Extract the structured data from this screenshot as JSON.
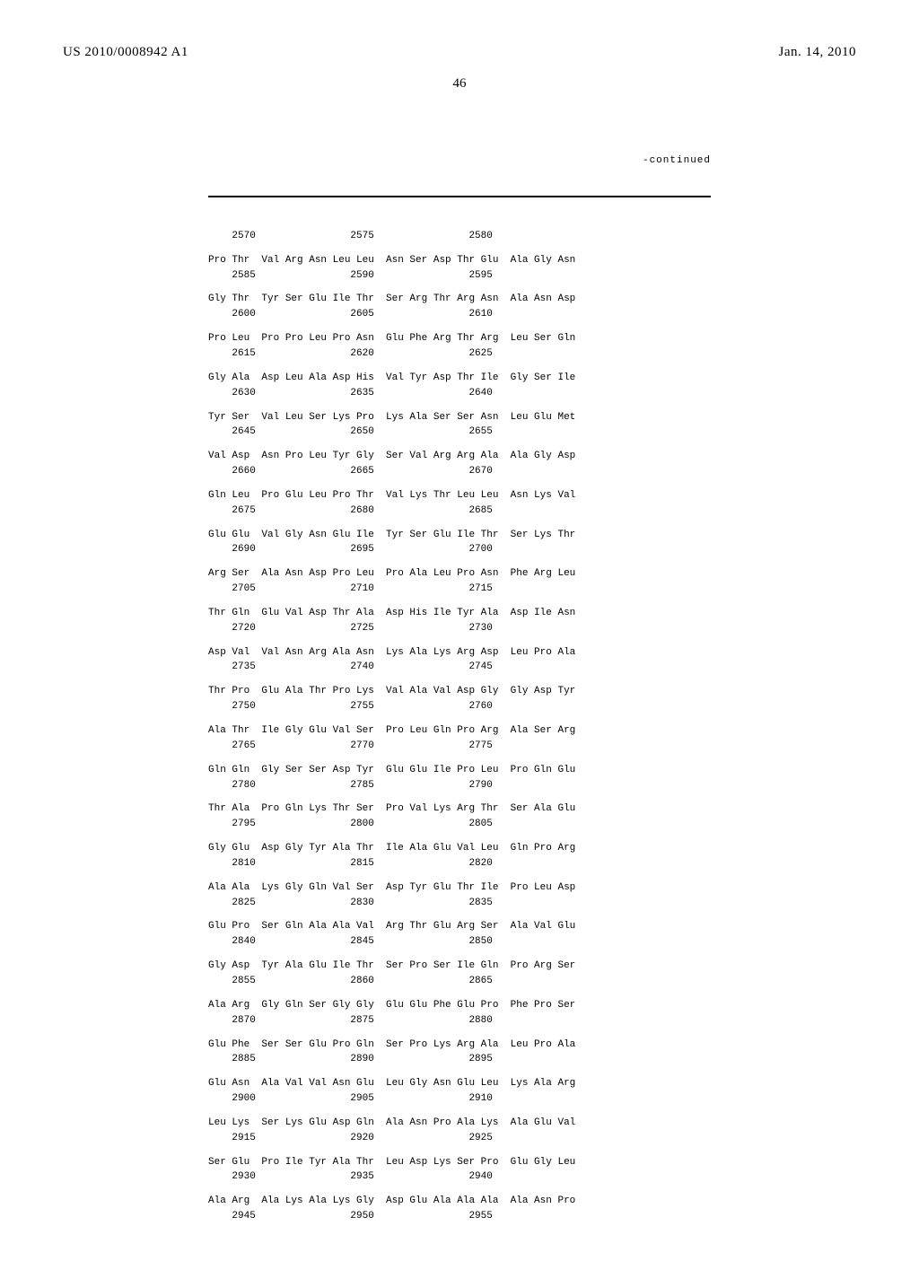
{
  "header": {
    "publication_number": "US 2010/0008942 A1",
    "date": "Jan. 14, 2010"
  },
  "page_number": "46",
  "continued_label": "-continued",
  "sequence_font": {
    "family": "Courier New",
    "size_pt": 11,
    "color": "#000000"
  },
  "sequence_rows": [
    {
      "type": "topnum",
      "text": "    2570                2575                2580"
    },
    {
      "type": "aa",
      "text": "Pro Thr  Val Arg Asn Leu Leu  Asn Ser Asp Thr Glu  Ala Gly Asn"
    },
    {
      "type": "num",
      "text": "    2585                2590                2595"
    },
    {
      "type": "aa",
      "text": "Gly Thr  Tyr Ser Glu Ile Thr  Ser Arg Thr Arg Asn  Ala Asn Asp"
    },
    {
      "type": "num",
      "text": "    2600                2605                2610"
    },
    {
      "type": "aa",
      "text": "Pro Leu  Pro Pro Leu Pro Asn  Glu Phe Arg Thr Arg  Leu Ser Gln"
    },
    {
      "type": "num",
      "text": "    2615                2620                2625"
    },
    {
      "type": "aa",
      "text": "Gly Ala  Asp Leu Ala Asp His  Val Tyr Asp Thr Ile  Gly Ser Ile"
    },
    {
      "type": "num",
      "text": "    2630                2635                2640"
    },
    {
      "type": "aa",
      "text": "Tyr Ser  Val Leu Ser Lys Pro  Lys Ala Ser Ser Asn  Leu Glu Met"
    },
    {
      "type": "num",
      "text": "    2645                2650                2655"
    },
    {
      "type": "aa",
      "text": "Val Asp  Asn Pro Leu Tyr Gly  Ser Val Arg Arg Ala  Ala Gly Asp"
    },
    {
      "type": "num",
      "text": "    2660                2665                2670"
    },
    {
      "type": "aa",
      "text": "Gln Leu  Pro Glu Leu Pro Thr  Val Lys Thr Leu Leu  Asn Lys Val"
    },
    {
      "type": "num",
      "text": "    2675                2680                2685"
    },
    {
      "type": "aa",
      "text": "Glu Glu  Val Gly Asn Glu Ile  Tyr Ser Glu Ile Thr  Ser Lys Thr"
    },
    {
      "type": "num",
      "text": "    2690                2695                2700"
    },
    {
      "type": "aa",
      "text": "Arg Ser  Ala Asn Asp Pro Leu  Pro Ala Leu Pro Asn  Phe Arg Leu"
    },
    {
      "type": "num",
      "text": "    2705                2710                2715"
    },
    {
      "type": "aa",
      "text": "Thr Gln  Glu Val Asp Thr Ala  Asp His Ile Tyr Ala  Asp Ile Asn"
    },
    {
      "type": "num",
      "text": "    2720                2725                2730"
    },
    {
      "type": "aa",
      "text": "Asp Val  Val Asn Arg Ala Asn  Lys Ala Lys Arg Asp  Leu Pro Ala"
    },
    {
      "type": "num",
      "text": "    2735                2740                2745"
    },
    {
      "type": "aa",
      "text": "Thr Pro  Glu Ala Thr Pro Lys  Val Ala Val Asp Gly  Gly Asp Tyr"
    },
    {
      "type": "num",
      "text": "    2750                2755                2760"
    },
    {
      "type": "aa",
      "text": "Ala Thr  Ile Gly Glu Val Ser  Pro Leu Gln Pro Arg  Ala Ser Arg"
    },
    {
      "type": "num",
      "text": "    2765                2770                2775"
    },
    {
      "type": "aa",
      "text": "Gln Gln  Gly Ser Ser Asp Tyr  Glu Glu Ile Pro Leu  Pro Gln Glu"
    },
    {
      "type": "num",
      "text": "    2780                2785                2790"
    },
    {
      "type": "aa",
      "text": "Thr Ala  Pro Gln Lys Thr Ser  Pro Val Lys Arg Thr  Ser Ala Glu"
    },
    {
      "type": "num",
      "text": "    2795                2800                2805"
    },
    {
      "type": "aa",
      "text": "Gly Glu  Asp Gly Tyr Ala Thr  Ile Ala Glu Val Leu  Gln Pro Arg"
    },
    {
      "type": "num",
      "text": "    2810                2815                2820"
    },
    {
      "type": "aa",
      "text": "Ala Ala  Lys Gly Gln Val Ser  Asp Tyr Glu Thr Ile  Pro Leu Asp"
    },
    {
      "type": "num",
      "text": "    2825                2830                2835"
    },
    {
      "type": "aa",
      "text": "Glu Pro  Ser Gln Ala Ala Val  Arg Thr Glu Arg Ser  Ala Val Glu"
    },
    {
      "type": "num",
      "text": "    2840                2845                2850"
    },
    {
      "type": "aa",
      "text": "Gly Asp  Tyr Ala Glu Ile Thr  Ser Pro Ser Ile Gln  Pro Arg Ser"
    },
    {
      "type": "num",
      "text": "    2855                2860                2865"
    },
    {
      "type": "aa",
      "text": "Ala Arg  Gly Gln Ser Gly Gly  Glu Glu Phe Glu Pro  Phe Pro Ser"
    },
    {
      "type": "num",
      "text": "    2870                2875                2880"
    },
    {
      "type": "aa",
      "text": "Glu Phe  Ser Ser Glu Pro Gln  Ser Pro Lys Arg Ala  Leu Pro Ala"
    },
    {
      "type": "num",
      "text": "    2885                2890                2895"
    },
    {
      "type": "aa",
      "text": "Glu Asn  Ala Val Val Asn Glu  Leu Gly Asn Glu Leu  Lys Ala Arg"
    },
    {
      "type": "num",
      "text": "    2900                2905                2910"
    },
    {
      "type": "aa",
      "text": "Leu Lys  Ser Lys Glu Asp Gln  Ala Asn Pro Ala Lys  Ala Glu Val"
    },
    {
      "type": "num",
      "text": "    2915                2920                2925"
    },
    {
      "type": "aa",
      "text": "Ser Glu  Pro Ile Tyr Ala Thr  Leu Asp Lys Ser Pro  Glu Gly Leu"
    },
    {
      "type": "num",
      "text": "    2930                2935                2940"
    },
    {
      "type": "aa",
      "text": "Ala Arg  Ala Lys Ala Lys Gly  Asp Glu Ala Ala Ala  Ala Asn Pro"
    },
    {
      "type": "num",
      "text": "    2945                2950                2955"
    }
  ]
}
